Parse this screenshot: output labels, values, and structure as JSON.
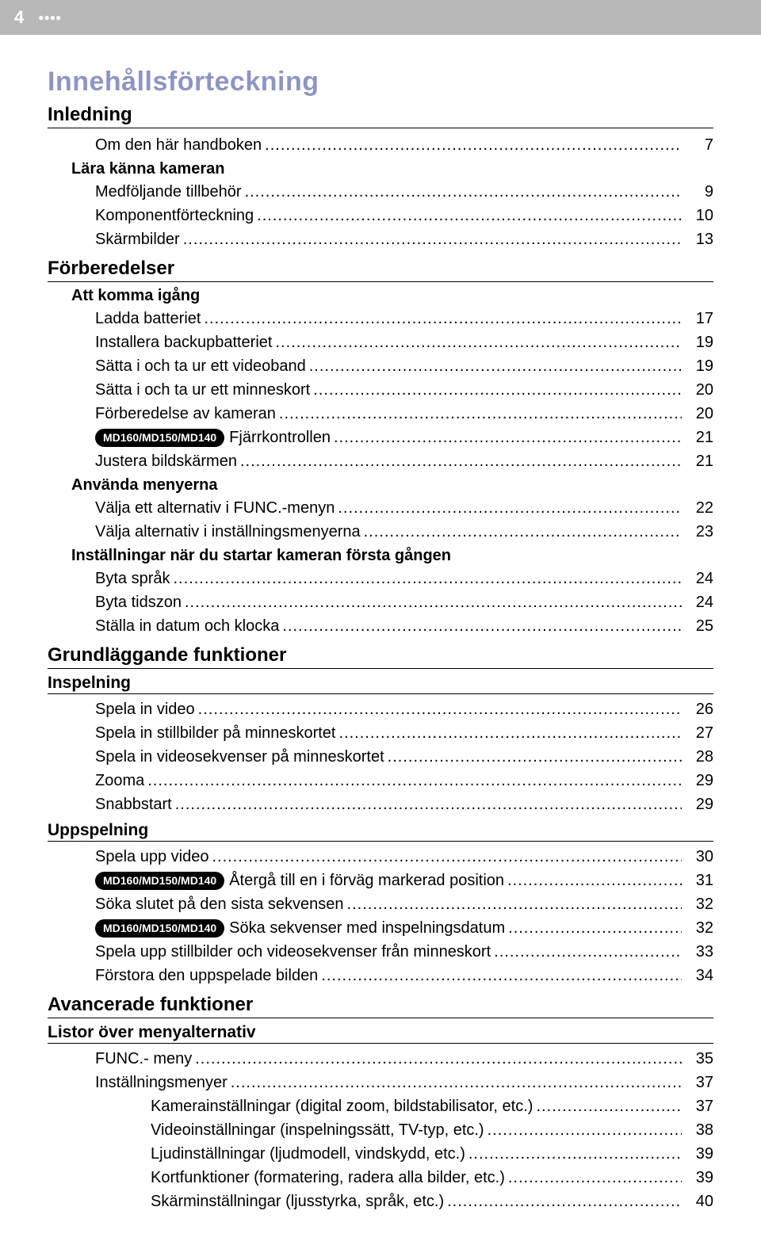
{
  "header": {
    "page_number": "4",
    "dots": "●●●●"
  },
  "title": "Innehållsförteckning",
  "badge_text": "MD160/MD150/MD140",
  "sections": [
    {
      "title": "Inledning",
      "groups": [
        {
          "title": null,
          "entries": [
            {
              "label": "Om den här handboken",
              "page": "7",
              "indent": 1
            }
          ]
        },
        {
          "title": "Lära känna kameran",
          "entries": [
            {
              "label": "Medföljande tillbehör",
              "page": "9",
              "indent": 1
            },
            {
              "label": "Komponentförteckning",
              "page": "10",
              "indent": 1
            },
            {
              "label": "Skärmbilder",
              "page": "13",
              "indent": 1
            }
          ]
        }
      ]
    },
    {
      "title": "Förberedelser",
      "groups": [
        {
          "title": "Att komma igång",
          "entries": [
            {
              "label": "Ladda batteriet",
              "page": "17",
              "indent": 1
            },
            {
              "label": "Installera backupbatteriet",
              "page": "19",
              "indent": 1
            },
            {
              "label": "Sätta i och ta ur ett videoband",
              "page": "19",
              "indent": 1
            },
            {
              "label": "Sätta i och ta ur ett minneskort",
              "page": "20",
              "indent": 1
            },
            {
              "label": "Förberedelse av kameran",
              "page": "20",
              "indent": 1
            },
            {
              "label": "Fjärrkontrollen",
              "page": "21",
              "indent": 1,
              "badge": true
            },
            {
              "label": "Justera bildskärmen",
              "page": "21",
              "indent": 1
            }
          ]
        },
        {
          "title": "Använda menyerna",
          "entries": [
            {
              "label": "Välja ett alternativ i FUNC.-menyn",
              "page": "22",
              "indent": 1
            },
            {
              "label": "Välja alternativ i inställningsmenyerna",
              "page": "23",
              "indent": 1
            }
          ]
        },
        {
          "title": "Inställningar när du startar kameran första gången",
          "entries": [
            {
              "label": "Byta språk",
              "page": "24",
              "indent": 1
            },
            {
              "label": "Byta tidszon",
              "page": "24",
              "indent": 1
            },
            {
              "label": "Ställa in datum och klocka",
              "page": "25",
              "indent": 1
            }
          ]
        }
      ]
    },
    {
      "title": "Grundläggande funktioner",
      "subsections": [
        {
          "title": "Inspelning",
          "entries": [
            {
              "label": "Spela in video",
              "page": "26",
              "indent": 1
            },
            {
              "label": "Spela in stillbilder på minneskortet",
              "page": "27",
              "indent": 1
            },
            {
              "label": "Spela in videosekvenser på minneskortet",
              "page": "28",
              "indent": 1
            },
            {
              "label": "Zooma",
              "page": "29",
              "indent": 1
            },
            {
              "label": "Snabbstart",
              "page": "29",
              "indent": 1
            }
          ]
        },
        {
          "title": "Uppspelning",
          "entries": [
            {
              "label": "Spela upp video",
              "page": "30",
              "indent": 1
            },
            {
              "label": "Återgå till en i förväg markerad position",
              "page": "31",
              "indent": 1,
              "badge": true
            },
            {
              "label": "Söka slutet på den sista sekvensen",
              "page": "32",
              "indent": 1
            },
            {
              "label": "Söka sekvenser med inspelningsdatum",
              "page": "32",
              "indent": 1,
              "badge": true
            },
            {
              "label": "Spela upp stillbilder och videosekvenser från minneskort",
              "page": "33",
              "indent": 1
            },
            {
              "label": "Förstora den uppspelade bilden",
              "page": "34",
              "indent": 1
            }
          ]
        }
      ]
    },
    {
      "title": "Avancerade funktioner",
      "subsections": [
        {
          "title": "Listor över menyalternativ",
          "entries": [
            {
              "label": "FUNC.- meny",
              "page": "35",
              "indent": 1
            },
            {
              "label": "Inställningsmenyer",
              "page": "37",
              "indent": 1
            },
            {
              "label": "Kamerainställningar (digital zoom, bildstabilisator, etc.)",
              "page": "37",
              "indent": 2
            },
            {
              "label": "Videoinställningar (inspelningssätt, TV-typ, etc.)",
              "page": "38",
              "indent": 2
            },
            {
              "label": "Ljudinställningar (ljudmodell, vindskydd, etc.)",
              "page": "39",
              "indent": 2
            },
            {
              "label": "Kortfunktioner (formatering, radera alla bilder, etc.)",
              "page": "39",
              "indent": 2
            },
            {
              "label": "Skärminställningar (ljusstyrka, språk, etc.)",
              "page": "40",
              "indent": 2
            }
          ]
        }
      ]
    }
  ]
}
